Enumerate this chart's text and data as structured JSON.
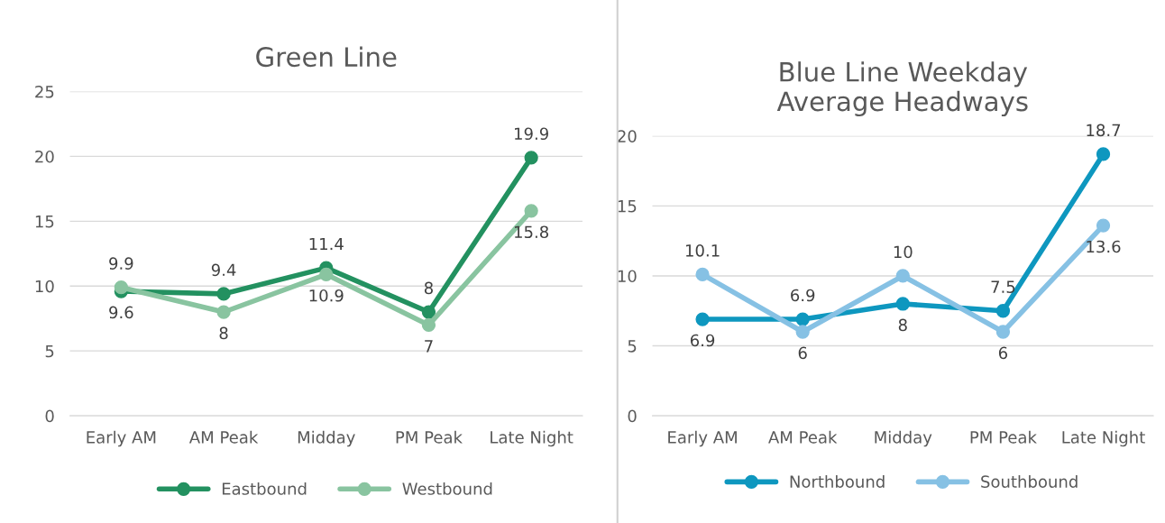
{
  "chart_data": [
    {
      "type": "line",
      "title": "Green Line",
      "categories": [
        "Early AM",
        "AM Peak",
        "Midday",
        "PM Peak",
        "Late Night"
      ],
      "series": [
        {
          "name": "Eastbound",
          "color": "#239160",
          "values": [
            9.6,
            9.4,
            11.4,
            8,
            19.9
          ]
        },
        {
          "name": "Westbound",
          "color": "#89c4a0",
          "values": [
            9.9,
            8,
            10.9,
            7,
            15.8
          ]
        }
      ],
      "ylim": [
        0,
        25
      ],
      "yticks": [
        0,
        5,
        10,
        15,
        20,
        25
      ],
      "grid": "y",
      "legend": "bottom",
      "marker": "circle",
      "line_style": "solid",
      "data_labels": true
    },
    {
      "type": "line",
      "title": "Blue Line Weekday Average Headways",
      "categories": [
        "Early AM",
        "AM Peak",
        "Midday",
        "PM Peak",
        "Late Night"
      ],
      "series": [
        {
          "name": "Northbound",
          "color": "#0e97bf",
          "values": [
            6.9,
            6.9,
            8,
            7.5,
            18.7
          ]
        },
        {
          "name": "Southbound",
          "color": "#86c1e4",
          "values": [
            10.1,
            6,
            10,
            6,
            13.6
          ]
        }
      ],
      "ylim": [
        0,
        20
      ],
      "yticks": [
        0,
        5,
        10,
        15,
        20
      ],
      "grid": "y",
      "legend": "bottom",
      "marker": "circle",
      "line_style": "solid",
      "data_labels": true
    }
  ]
}
